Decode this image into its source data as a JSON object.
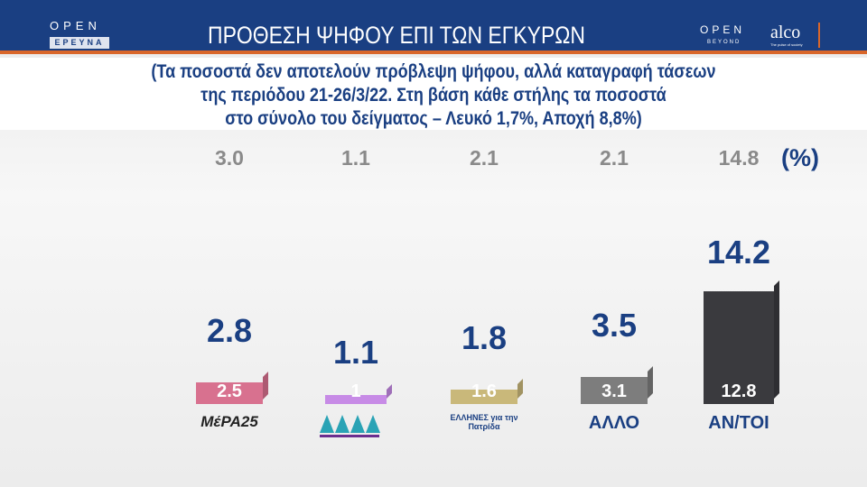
{
  "header": {
    "brand_left": "OPEN",
    "brand_left_sub": "ΕΡΕΥΝΑ",
    "title": "ΠΡΟΘΕΣΗ ΨΗΦΟΥ ΕΠΙ ΤΩΝ ΕΓΚΥΡΩΝ",
    "brand_right": "OPEN",
    "brand_right_sub": "BEYOND",
    "partner": "alco",
    "partner_tagline": "The pulse of society"
  },
  "subtitle": [
    "(Τα ποσοστά δεν αποτελούν πρόβλεψη ψήφου, αλλά καταγραφή τάσεων",
    "της περιόδου 21-26/3/22. Στη βάση κάθε στήλης τα ποσοστά",
    "στο σύνολο του δείγματος – Λευκό 1,7%, Αποχή 8,8%)"
  ],
  "chart_data": {
    "type": "bar",
    "unit_label": "(%)",
    "categories": [
      "ΜέΡΑ25",
      "",
      "ΕΛΛΗΝΕΣ για την Πατρίδα",
      "ΑΛΛΟ",
      "ΑΝ/ΤΟΙ"
    ],
    "previous_values": [
      "3.0",
      "1.1",
      "2.1",
      "2.1",
      "14.8"
    ],
    "valid_vote_values": [
      "2.8",
      "1.1",
      "1.8",
      "3.5",
      "14.2"
    ],
    "sample_values": [
      2.5,
      1,
      1.6,
      3.1,
      12.8
    ],
    "sample_labels": [
      "2.5",
      "1",
      "1.6",
      "3.1",
      "12.8"
    ],
    "colors": [
      "#d8718f",
      "#c78be6",
      "#c9b87a",
      "#7d7d7d",
      "#3a3a3e"
    ]
  }
}
